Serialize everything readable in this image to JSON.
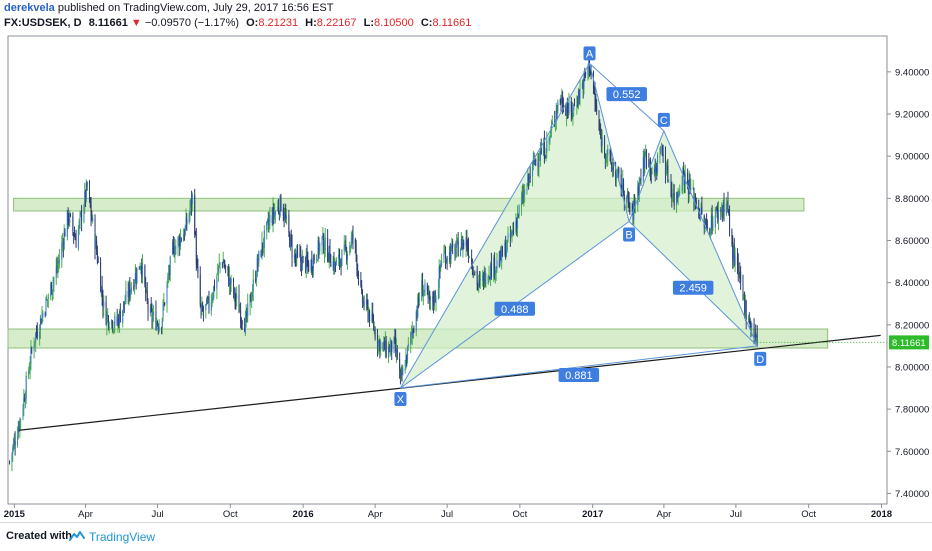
{
  "header": {
    "author": "derekvela",
    "published_text": "published on TradingView.com, July 29, 2017 16:56 EST",
    "symbol": "FX:USDSEK, D",
    "last": "8.11661",
    "change_arrow": "▼",
    "change": "−0.09570 (−1.17%)",
    "open_label": "O:",
    "open": "8.21231",
    "high_label": "H:",
    "high": "8.22167",
    "low_label": "L:",
    "low": "8.10500",
    "close_label": "C:",
    "close": "8.11661"
  },
  "footer": {
    "created_with": "Created with",
    "brand": "TradingView"
  },
  "colors": {
    "up": "#3a7bd5",
    "down": "#2c3e73",
    "wick_up": "#4caf50",
    "zone_fill": "#c9e5b8",
    "zone_stroke": "#8fc07a",
    "pattern_fill": "#d4f0cc",
    "pattern_line": "#5b95d9",
    "label_bg": "#3d7ee0",
    "price_tag": "#2dbb2a",
    "trend_line": "#1c1c1c"
  },
  "chart_data": {
    "type": "candlestick",
    "symbol": "FX:USDSEK",
    "timeframe": "D",
    "x_range": [
      "2014-12-24",
      "2018-01-08"
    ],
    "ylim": [
      7.35,
      9.57
    ],
    "y_ticks": [
      "9.40000",
      "9.20000",
      "9.00000",
      "8.80000",
      "8.60000",
      "8.40000",
      "8.20000",
      "8.00000",
      "7.80000",
      "7.60000",
      "7.40000"
    ],
    "x_ticks": [
      {
        "label": "2015",
        "date": "2015-01-01",
        "bold": true
      },
      {
        "label": "Apr",
        "date": "2015-04-01",
        "bold": false
      },
      {
        "label": "Jul",
        "date": "2015-07-01",
        "bold": false
      },
      {
        "label": "Oct",
        "date": "2015-10-01",
        "bold": false
      },
      {
        "label": "2016",
        "date": "2016-01-01",
        "bold": true
      },
      {
        "label": "Apr",
        "date": "2016-04-01",
        "bold": false
      },
      {
        "label": "Jul",
        "date": "2016-07-01",
        "bold": false
      },
      {
        "label": "Oct",
        "date": "2016-10-01",
        "bold": false
      },
      {
        "label": "2017",
        "date": "2017-01-01",
        "bold": true
      },
      {
        "label": "Apr",
        "date": "2017-04-01",
        "bold": false
      },
      {
        "label": "Jul",
        "date": "2017-07-01",
        "bold": false
      },
      {
        "label": "Oct",
        "date": "2017-10-01",
        "bold": false
      },
      {
        "label": "2018",
        "date": "2018-01-01",
        "bold": true
      }
    ],
    "current_price": "8.11661",
    "price_path": [
      [
        "2014-12-26",
        7.55
      ],
      [
        "2015-01-10",
        7.78
      ],
      [
        "2015-01-25",
        8.12
      ],
      [
        "2015-02-10",
        8.3
      ],
      [
        "2015-02-25",
        8.48
      ],
      [
        "2015-03-10",
        8.72
      ],
      [
        "2015-03-20",
        8.6
      ],
      [
        "2015-04-03",
        8.85
      ],
      [
        "2015-04-15",
        8.55
      ],
      [
        "2015-04-25",
        8.25
      ],
      [
        "2015-05-10",
        8.2
      ],
      [
        "2015-05-25",
        8.35
      ],
      [
        "2015-06-10",
        8.5
      ],
      [
        "2015-06-20",
        8.25
      ],
      [
        "2015-07-05",
        8.2
      ],
      [
        "2015-07-20",
        8.55
      ],
      [
        "2015-08-05",
        8.65
      ],
      [
        "2015-08-15",
        8.82
      ],
      [
        "2015-08-20",
        8.45
      ],
      [
        "2015-08-25",
        8.25
      ],
      [
        "2015-09-05",
        8.3
      ],
      [
        "2015-09-20",
        8.52
      ],
      [
        "2015-10-05",
        8.35
      ],
      [
        "2015-10-20",
        8.2
      ],
      [
        "2015-11-05",
        8.5
      ],
      [
        "2015-11-20",
        8.7
      ],
      [
        "2015-12-05",
        8.78
      ],
      [
        "2015-12-20",
        8.52
      ],
      [
        "2016-01-10",
        8.48
      ],
      [
        "2016-01-25",
        8.6
      ],
      [
        "2016-02-10",
        8.48
      ],
      [
        "2016-02-25",
        8.55
      ],
      [
        "2016-03-05",
        8.62
      ],
      [
        "2016-03-15",
        8.32
      ],
      [
        "2016-03-25",
        8.25
      ],
      [
        "2016-04-05",
        8.12
      ],
      [
        "2016-04-15",
        8.08
      ],
      [
        "2016-04-25",
        8.1
      ],
      [
        "2016-05-01",
        8.02
      ],
      [
        "2016-05-03",
        7.92
      ],
      [
        "2016-05-15",
        8.12
      ],
      [
        "2016-05-30",
        8.38
      ],
      [
        "2016-06-10",
        8.3
      ],
      [
        "2016-06-18",
        8.35
      ],
      [
        "2016-06-24",
        8.52
      ],
      [
        "2016-07-10",
        8.55
      ],
      [
        "2016-07-25",
        8.6
      ],
      [
        "2016-08-10",
        8.38
      ],
      [
        "2016-08-20",
        8.45
      ],
      [
        "2016-09-05",
        8.5
      ],
      [
        "2016-09-20",
        8.62
      ],
      [
        "2016-10-05",
        8.8
      ],
      [
        "2016-10-20",
        8.98
      ],
      [
        "2016-11-05",
        9.05
      ],
      [
        "2016-11-20",
        9.28
      ],
      [
        "2016-12-05",
        9.2
      ],
      [
        "2016-12-20",
        9.35
      ],
      [
        "2016-12-28",
        9.44
      ],
      [
        "2017-01-10",
        9.1
      ],
      [
        "2017-01-25",
        8.95
      ],
      [
        "2017-02-08",
        8.85
      ],
      [
        "2017-02-20",
        8.72
      ],
      [
        "2017-03-01",
        8.88
      ],
      [
        "2017-03-10",
        9.02
      ],
      [
        "2017-03-20",
        8.9
      ],
      [
        "2017-03-28",
        9.05
      ],
      [
        "2017-04-05",
        8.92
      ],
      [
        "2017-04-15",
        8.78
      ],
      [
        "2017-04-25",
        8.92
      ],
      [
        "2017-05-10",
        8.8
      ],
      [
        "2017-05-25",
        8.65
      ],
      [
        "2017-06-05",
        8.72
      ],
      [
        "2017-06-20",
        8.78
      ],
      [
        "2017-06-25",
        8.58
      ],
      [
        "2017-07-05",
        8.42
      ],
      [
        "2017-07-15",
        8.25
      ],
      [
        "2017-07-22",
        8.18
      ],
      [
        "2017-07-28",
        8.12
      ]
    ],
    "zones": [
      {
        "start": "2014-12-31",
        "end": "2017-09-25",
        "low": 8.74,
        "high": 8.8
      },
      {
        "start": "2014-12-24",
        "end": "2017-10-25",
        "low": 8.09,
        "high": 8.18
      }
    ],
    "trend_line": {
      "start": [
        "2015-01-07",
        7.7
      ],
      "end": [
        "2017-12-31",
        8.15
      ]
    },
    "harmonic_points": [
      {
        "label": "X",
        "date": "2016-05-03",
        "value": 7.9
      },
      {
        "label": "A",
        "date": "2016-12-28",
        "value": 9.44
      },
      {
        "label": "B",
        "date": "2017-02-16",
        "value": 8.69
      },
      {
        "label": "C",
        "date": "2017-04-01",
        "value": 9.12
      },
      {
        "label": "D",
        "date": "2017-07-28",
        "value": 8.1
      }
    ],
    "ratios": [
      "0.488",
      "0.552",
      "2.459",
      "0.881"
    ]
  }
}
